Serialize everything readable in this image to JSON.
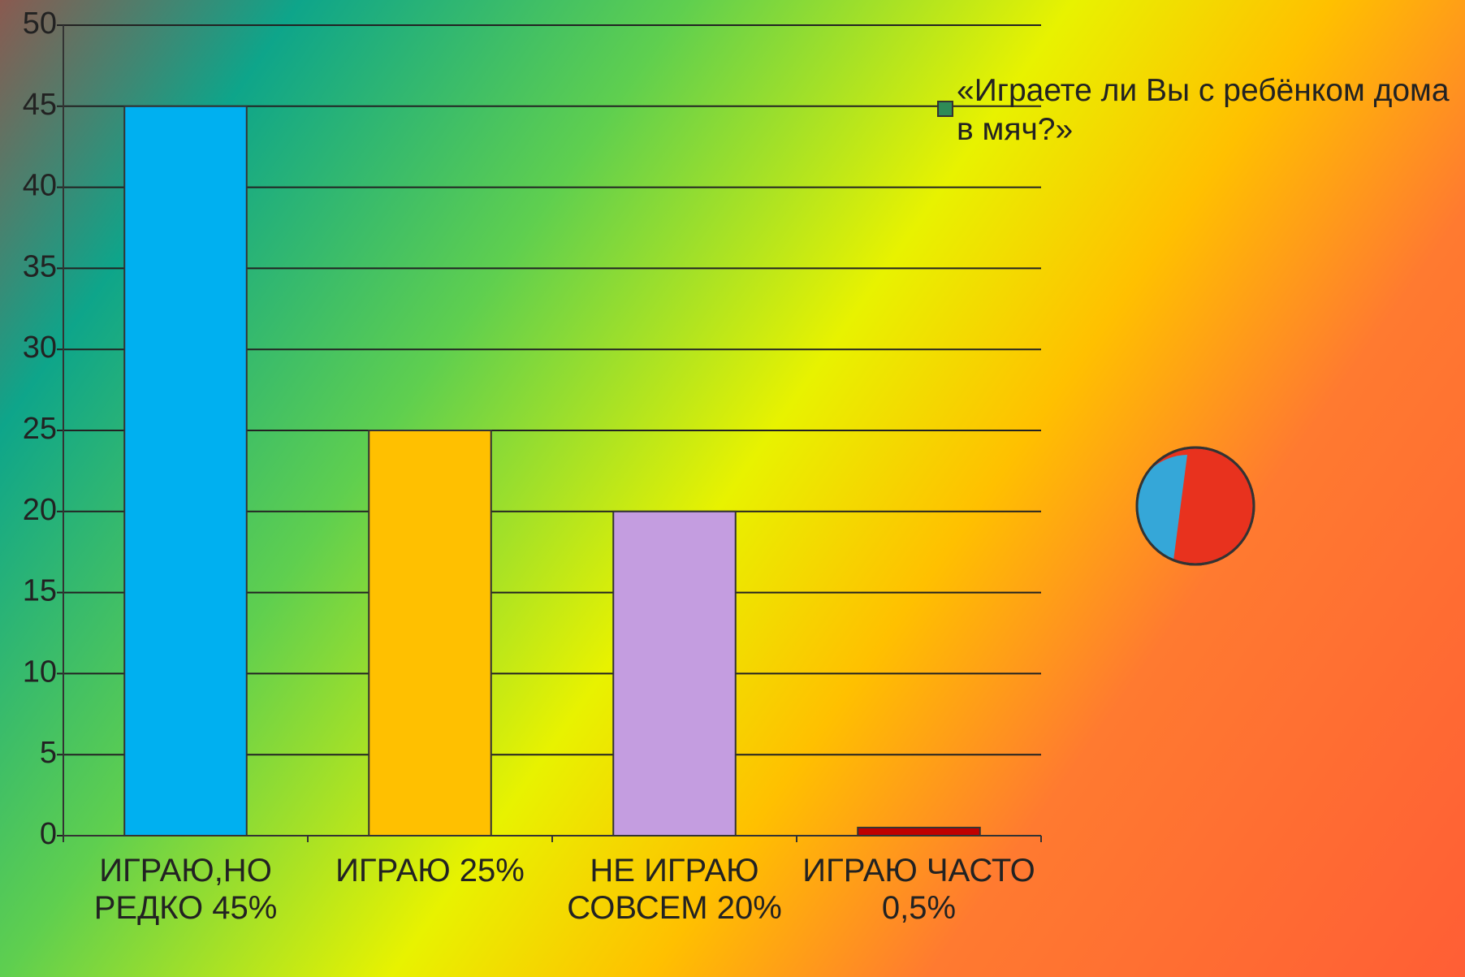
{
  "chart_data": {
    "type": "bar",
    "categories": [
      "ИГРАЮ,НО РЕДКО 45%",
      "ИГРАЮ 25%",
      "НЕ ИГРАЮ СОВСЕМ 20%",
      "ИГРАЮ ЧАСТО 0,5%"
    ],
    "series": [
      {
        "name": "«Играете ли Вы с ребёнком дома в мяч?»",
        "color": "#2e8b57",
        "values": [
          45,
          25,
          20,
          0.5
        ],
        "colors": [
          "#00b0f0",
          "#ffc000",
          "#c49de0",
          "#c00000"
        ]
      }
    ],
    "ylim": [
      0,
      50
    ],
    "yticks": [
      0,
      5,
      10,
      15,
      20,
      25,
      30,
      35,
      40,
      45,
      50
    ],
    "grid": true,
    "legend": "top-right"
  }
}
